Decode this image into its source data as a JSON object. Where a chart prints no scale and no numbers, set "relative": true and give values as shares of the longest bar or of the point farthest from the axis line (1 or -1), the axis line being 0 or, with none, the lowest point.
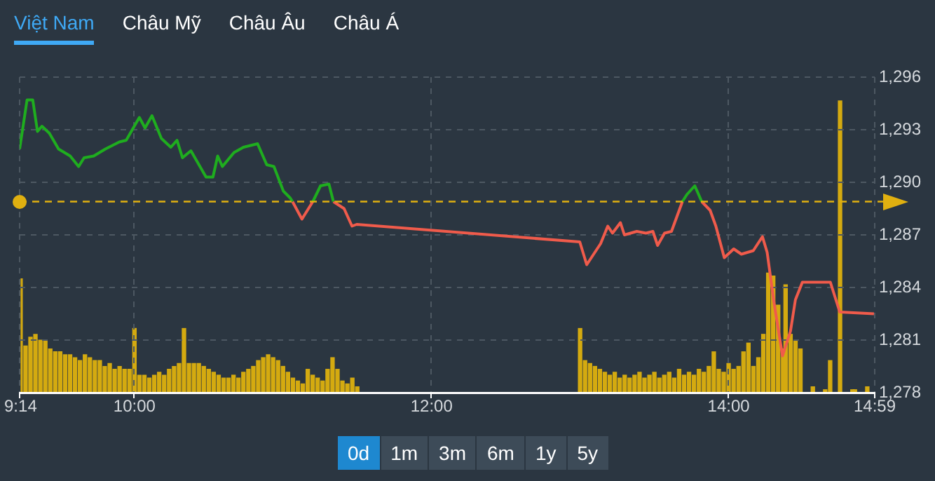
{
  "chart_data": [
    {
      "type": "line",
      "annotations": [
        "Việt Nam",
        "Châu Mỹ",
        "Châu Âu",
        "Châu Á",
        "0d",
        "1m",
        "3m",
        "6m",
        "1y",
        "5y"
      ],
      "x": [
        9.2333,
        9.2833,
        9.3217,
        9.3533,
        9.3833,
        9.4333,
        9.495,
        9.5733,
        9.63,
        9.6667,
        9.7317,
        9.81,
        9.9033,
        9.95,
        10.0383,
        10.0767,
        10.1233,
        10.1867,
        10.25,
        10.2917,
        10.3283,
        10.385,
        10.4867,
        10.5333,
        10.565,
        10.5967,
        10.675,
        10.7383,
        10.8333,
        10.895,
        10.9433,
        11.0067,
        11.0533,
        11.0683,
        11.1317,
        11.205,
        11.2567,
        11.3133,
        11.3433,
        11.415,
        11.4683,
        11.5,
        13.0,
        13.0467,
        13.0933,
        13.14,
        13.1883,
        13.22,
        13.2733,
        13.3,
        13.3833,
        13.445,
        13.4917,
        13.5233,
        13.57,
        13.6167,
        13.69,
        13.72,
        13.7733,
        13.82,
        13.8767,
        13.915,
        13.9717,
        14.035,
        14.0867,
        14.1667,
        14.2283,
        14.26,
        14.3067,
        14.3633,
        14.4167,
        14.45,
        14.4967,
        14.685,
        14.7483,
        14.9783
      ],
      "series": [
        {
          "color": "#1fad1f",
          "values": [
            1291.9,
            1294.7,
            1294.7,
            1292.9,
            1293.2,
            1292.8,
            1291.9,
            1291.5,
            1290.9,
            1291.4,
            1291.5,
            1291.9,
            1292.3,
            1292.4,
            1293.7,
            1293.1,
            1293.8,
            1292.5,
            1292.0,
            1292.4,
            1291.4,
            1291.8,
            1290.3,
            1290.3,
            1291.5,
            1290.9,
            1291.7,
            1292.0,
            1292.2,
            1291.0,
            1290.9,
            1289.5,
            1289.1,
            1288.9,
            null,
            1288.9,
            1289.8,
            1289.9,
            1288.9,
            null,
            null,
            null,
            null,
            null,
            null,
            null,
            null,
            null,
            null,
            null,
            null,
            null,
            null,
            null,
            null,
            null,
            1288.9,
            1289.3,
            1289.8,
            1288.9,
            null,
            null,
            null,
            null,
            null,
            null,
            null,
            null,
            null,
            null,
            null,
            null,
            null,
            null,
            null,
            null
          ]
        },
        {
          "color": "#f05b4b",
          "values": [
            null,
            null,
            null,
            null,
            null,
            null,
            null,
            null,
            null,
            null,
            null,
            null,
            null,
            null,
            null,
            null,
            null,
            null,
            null,
            null,
            null,
            null,
            null,
            null,
            null,
            null,
            null,
            null,
            null,
            null,
            null,
            null,
            null,
            1288.9,
            1287.9,
            1288.9,
            null,
            null,
            1288.9,
            1288.5,
            1287.5,
            1287.6,
            1286.6,
            1285.3,
            1285.9,
            1286.5,
            1287.5,
            1287.1,
            1287.7,
            1287.0,
            1287.2,
            1287.1,
            1287.2,
            1286.4,
            1287.1,
            1287.2,
            1288.9,
            null,
            null,
            1288.9,
            1288.4,
            1287.5,
            1285.7,
            1286.2,
            1285.9,
            1286.1,
            1286.9,
            1286.0,
            1283.1,
            1280.1,
            1281.5,
            1283.3,
            1284.3,
            1284.3,
            1282.6,
            1282.5
          ]
        }
      ],
      "xlim": [
        9.2333,
        14.9833
      ],
      "xticks": [
        {
          "value": 9.2333,
          "label": null
        },
        {
          "value": 10,
          "label": null
        },
        {
          "value": 12,
          "label": null
        },
        {
          "value": 14,
          "label": null
        },
        {
          "value": 14.9833,
          "label": null
        }
      ],
      "ylim": [
        1278,
        1296
      ],
      "yticks": [
        {
          "value": 1278,
          "label": "1,278"
        },
        {
          "value": 1281,
          "label": "1,281"
        },
        {
          "value": 1284,
          "label": "1,284"
        },
        {
          "value": 1287,
          "label": "1,287"
        },
        {
          "value": 1290,
          "label": "1,290"
        },
        {
          "value": 1293,
          "label": "1,293"
        },
        {
          "value": 1296,
          "label": "1,296"
        }
      ],
      "ref_lines": [
        {
          "axis": "y",
          "value": 1288.9,
          "color": "#e0b010",
          "line_style": "dashed"
        }
      ],
      "grid": true,
      "legend": false,
      "marker": "none",
      "line_style": "solid",
      "tick_labels": "y"
    },
    {
      "type": "bar",
      "relative": true,
      "tick_labels": "x",
      "color": "#d4aa10",
      "xlim": [
        9.2333,
        14.9833
      ],
      "xticks": [
        {
          "value": 9.2333,
          "label": "9:14"
        },
        {
          "value": 10,
          "label": "10:00"
        },
        {
          "value": 12,
          "label": "12:00"
        },
        {
          "value": 14,
          "label": "14:00"
        },
        {
          "value": 14.9833,
          "label": "14:59"
        }
      ],
      "x": [
        9.2333,
        9.2667,
        9.3,
        9.3333,
        9.3667,
        9.4,
        9.4333,
        9.4667,
        9.5,
        9.5333,
        9.5667,
        9.6,
        9.6333,
        9.6667,
        9.7,
        9.7333,
        9.7667,
        9.8,
        9.8333,
        9.8667,
        9.9,
        9.9333,
        9.9667,
        10.0,
        10.0333,
        10.0667,
        10.1,
        10.1333,
        10.1667,
        10.2,
        10.2333,
        10.2667,
        10.3,
        10.3333,
        10.3667,
        10.4,
        10.4333,
        10.4667,
        10.5,
        10.5333,
        10.5667,
        10.6,
        10.6333,
        10.6667,
        10.7,
        10.7333,
        10.7667,
        10.8,
        10.8333,
        10.8667,
        10.9,
        10.9333,
        10.9667,
        11.0,
        11.0333,
        11.0667,
        11.1,
        11.1333,
        11.1667,
        11.2,
        11.2333,
        11.2667,
        11.3,
        11.3333,
        11.3667,
        11.4,
        11.4333,
        11.4667,
        11.5,
        13.0,
        13.0333,
        13.0667,
        13.1,
        13.1333,
        13.1667,
        13.2,
        13.2333,
        13.2667,
        13.3,
        13.3333,
        13.3667,
        13.4,
        13.4333,
        13.4667,
        13.5,
        13.5333,
        13.5667,
        13.6,
        13.6333,
        13.6667,
        13.7,
        13.7333,
        13.7667,
        13.8,
        13.8333,
        13.8667,
        13.9,
        13.9333,
        13.9667,
        14.0,
        14.0333,
        14.0667,
        14.1,
        14.1333,
        14.1667,
        14.2,
        14.2333,
        14.2667,
        14.3,
        14.3333,
        14.3667,
        14.3833,
        14.4167,
        14.45,
        14.4833,
        14.5667,
        14.65,
        14.6833,
        14.75,
        14.8333,
        14.85,
        14.9333
      ],
      "values": [
        0.39,
        0.16,
        0.19,
        0.2,
        0.18,
        0.18,
        0.15,
        0.14,
        0.14,
        0.13,
        0.13,
        0.12,
        0.11,
        0.13,
        0.12,
        0.11,
        0.11,
        0.09,
        0.1,
        0.08,
        0.09,
        0.08,
        0.08,
        0.22,
        0.06,
        0.06,
        0.05,
        0.06,
        0.07,
        0.06,
        0.08,
        0.09,
        0.1,
        0.22,
        0.1,
        0.1,
        0.1,
        0.09,
        0.08,
        0.07,
        0.06,
        0.05,
        0.05,
        0.06,
        0.05,
        0.07,
        0.08,
        0.09,
        0.11,
        0.12,
        0.13,
        0.12,
        0.11,
        0.09,
        0.07,
        0.05,
        0.04,
        0.03,
        0.08,
        0.06,
        0.05,
        0.04,
        0.08,
        0.12,
        0.08,
        0.04,
        0.03,
        0.05,
        0.02,
        0.22,
        0.11,
        0.1,
        0.09,
        0.08,
        0.07,
        0.06,
        0.07,
        0.05,
        0.06,
        0.05,
        0.06,
        0.07,
        0.05,
        0.06,
        0.07,
        0.05,
        0.06,
        0.07,
        0.05,
        0.08,
        0.06,
        0.07,
        0.06,
        0.08,
        0.07,
        0.09,
        0.14,
        0.08,
        0.07,
        0.1,
        0.08,
        0.09,
        0.14,
        0.17,
        0.09,
        0.12,
        0.2,
        0.41,
        0.4,
        0.3,
        0.15,
        0.37,
        0.2,
        0.18,
        0.15,
        0.02,
        0.01,
        0.11,
        1,
        0.01,
        0.01,
        0.02
      ]
    }
  ]
}
